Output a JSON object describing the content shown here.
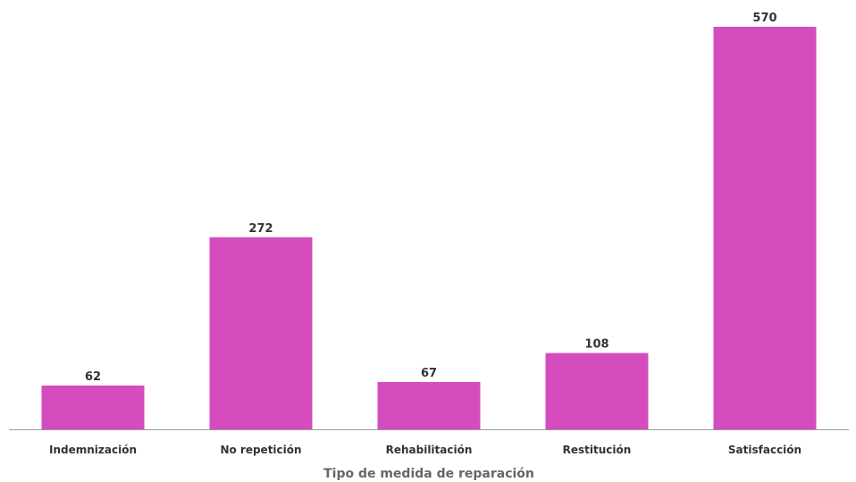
{
  "chart_data": {
    "type": "bar",
    "title": "",
    "xlabel": "Tipo de medida de reparación",
    "ylabel": "",
    "categories": [
      "Indemnización",
      "No repetición",
      "Rehabilitación",
      "Restitución",
      "Satisfacción"
    ],
    "values": [
      62,
      272,
      67,
      108,
      570
    ],
    "ylim": [
      0,
      570
    ],
    "grid": false,
    "legend": "none",
    "bar_color": "#d54cbf",
    "axis_color": "#9a9a9a",
    "show_data_labels": true
  }
}
